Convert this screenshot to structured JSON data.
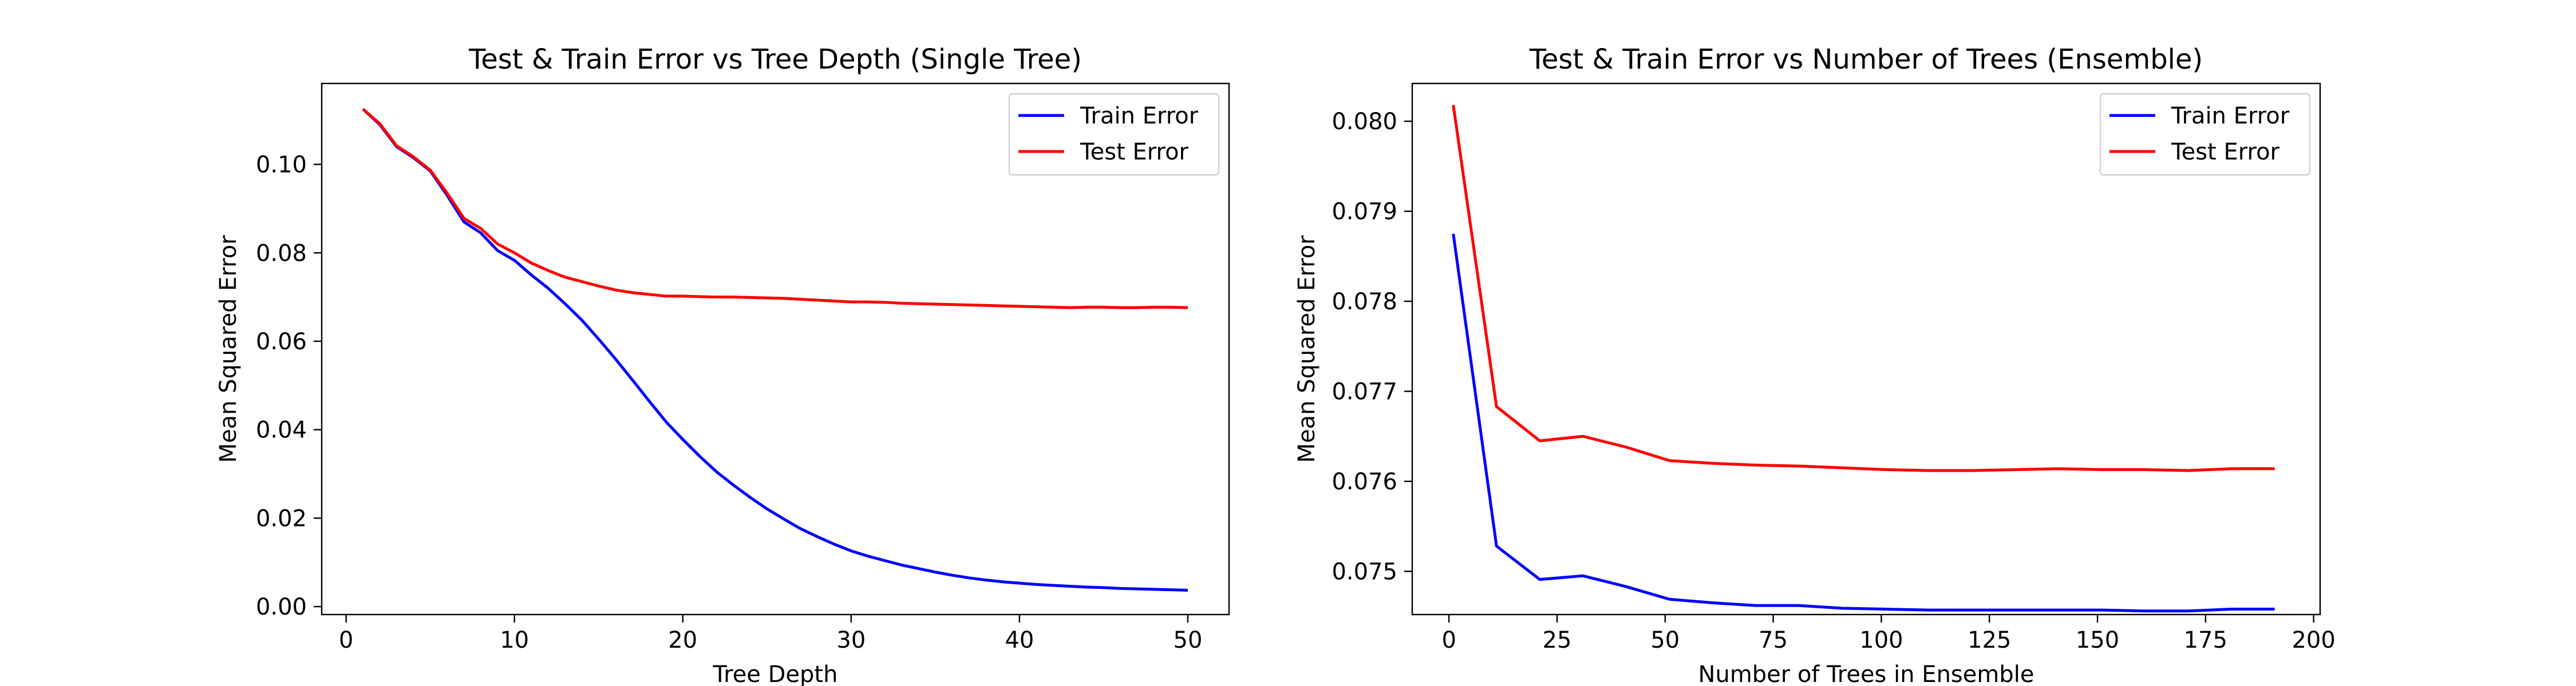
{
  "chart_data": [
    {
      "type": "line",
      "title": "Test & Train Error vs Tree Depth (Single Tree)",
      "xlabel": "Tree Depth",
      "ylabel": "Mean Squared Error",
      "xlim": [
        -1.45,
        52.45
      ],
      "ylim": [
        -0.0018,
        0.1183
      ],
      "xticks": [
        0,
        10,
        20,
        30,
        40,
        50
      ],
      "yticks": [
        0.0,
        0.02,
        0.04,
        0.06,
        0.08,
        0.1
      ],
      "ytick_decimals": 2,
      "grid": false,
      "legend_position": "top-right",
      "x": [
        1,
        2,
        3,
        4,
        5,
        6,
        7,
        8,
        9,
        10,
        11,
        12,
        13,
        14,
        15,
        16,
        17,
        18,
        19,
        20,
        21,
        22,
        23,
        24,
        25,
        26,
        27,
        28,
        29,
        30,
        31,
        32,
        33,
        34,
        35,
        36,
        37,
        38,
        39,
        40,
        41,
        42,
        43,
        44,
        45,
        46,
        47,
        48,
        49,
        50
      ],
      "series": [
        {
          "name": "Train Error",
          "color": "#0000ff",
          "values": [
            0.1125,
            0.109,
            0.104,
            0.1015,
            0.0985,
            0.093,
            0.087,
            0.0845,
            0.0805,
            0.0783,
            0.075,
            0.072,
            0.0685,
            0.0648,
            0.0605,
            0.056,
            0.0513,
            0.0465,
            0.0418,
            0.0378,
            0.034,
            0.0305,
            0.0275,
            0.0247,
            0.0221,
            0.0198,
            0.0176,
            0.0158,
            0.0141,
            0.0126,
            0.0114,
            0.0104,
            0.0094,
            0.0086,
            0.0078,
            0.0071,
            0.0065,
            0.006,
            0.0056,
            0.0053,
            0.005,
            0.0048,
            0.0046,
            0.0044,
            0.0043,
            0.0041,
            0.004,
            0.0039,
            0.0038,
            0.0037
          ]
        },
        {
          "name": "Test Error",
          "color": "#ff0000",
          "values": [
            0.1125,
            0.1092,
            0.1042,
            0.1017,
            0.0987,
            0.0935,
            0.0878,
            0.0855,
            0.082,
            0.08,
            0.0777,
            0.076,
            0.0745,
            0.0735,
            0.0725,
            0.0716,
            0.071,
            0.0706,
            0.0702,
            0.0702,
            0.0701,
            0.07,
            0.07,
            0.0699,
            0.0698,
            0.0697,
            0.0695,
            0.0693,
            0.0691,
            0.0689,
            0.0689,
            0.0688,
            0.0686,
            0.0685,
            0.0684,
            0.0683,
            0.0682,
            0.0681,
            0.068,
            0.0679,
            0.0678,
            0.0677,
            0.0676,
            0.0677,
            0.0677,
            0.0676,
            0.0676,
            0.0677,
            0.0677,
            0.0676
          ]
        }
      ]
    },
    {
      "type": "line",
      "title": "Test & Train Error vs Number of Trees (Ensemble)",
      "xlabel": "Number of Trees in Ensemble",
      "ylabel": "Mean Squared Error",
      "xlim": [
        -8.5,
        201.5
      ],
      "ylim": [
        0.07452,
        0.08042
      ],
      "xticks": [
        0,
        25,
        50,
        75,
        100,
        125,
        150,
        175,
        200
      ],
      "yticks": [
        0.075,
        0.076,
        0.077,
        0.078,
        0.079,
        0.08
      ],
      "ytick_decimals": 3,
      "grid": false,
      "legend_position": "top-right",
      "x": [
        1,
        11,
        21,
        31,
        41,
        51,
        61,
        71,
        81,
        91,
        101,
        111,
        121,
        131,
        141,
        151,
        161,
        171,
        181,
        191
      ],
      "series": [
        {
          "name": "Train Error",
          "color": "#0000ff",
          "values": [
            0.07875,
            0.07528,
            0.07491,
            0.07495,
            0.07483,
            0.07469,
            0.07465,
            0.07462,
            0.07462,
            0.07459,
            0.07458,
            0.07457,
            0.07457,
            0.07457,
            0.07457,
            0.07457,
            0.07456,
            0.07456,
            0.07458,
            0.07458
          ]
        },
        {
          "name": "Test Error",
          "color": "#ff0000",
          "values": [
            0.08018,
            0.07683,
            0.07645,
            0.0765,
            0.07638,
            0.07623,
            0.0762,
            0.07618,
            0.07617,
            0.07615,
            0.07613,
            0.07612,
            0.07612,
            0.07613,
            0.07614,
            0.07613,
            0.07613,
            0.07612,
            0.07614,
            0.07614
          ]
        }
      ]
    }
  ]
}
